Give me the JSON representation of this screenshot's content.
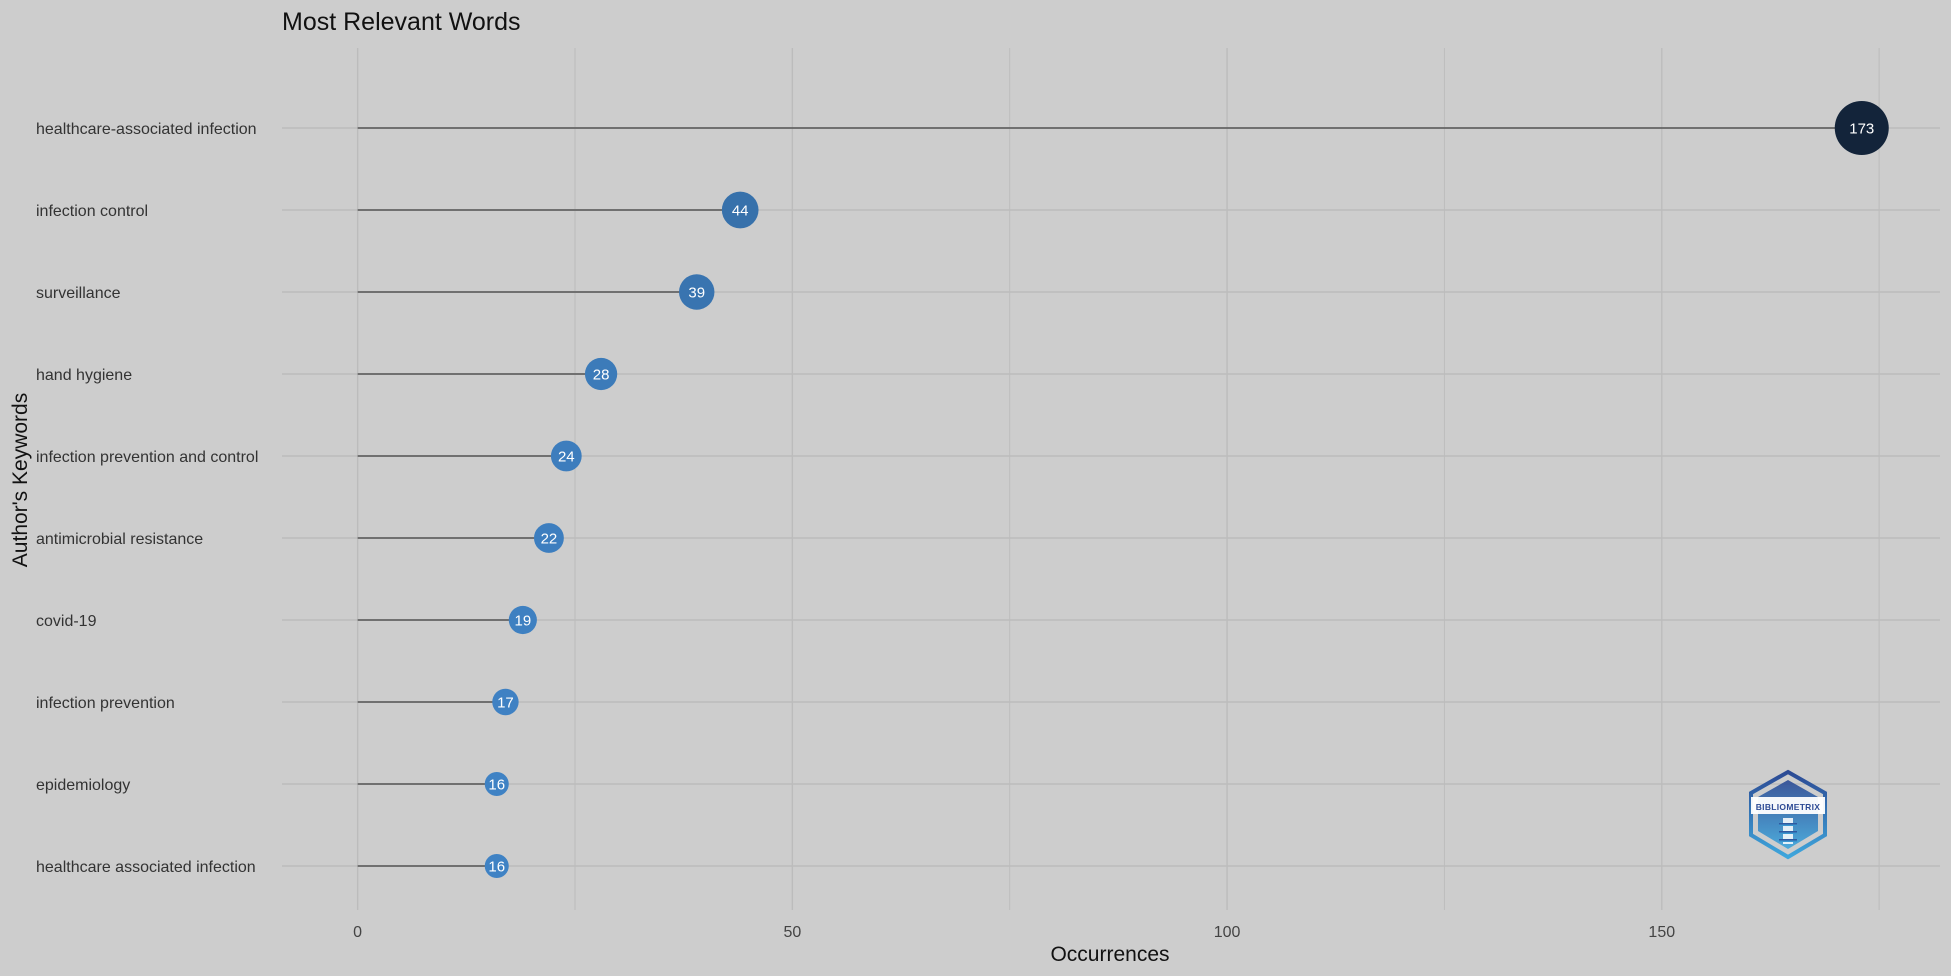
{
  "chart_data": {
    "type": "lollipop",
    "title": "Most Relevant Words",
    "xlabel": "Occurrences",
    "ylabel": "Author's Keywords",
    "xlim": [
      -8.7,
      182
    ],
    "xticks": [
      0,
      50,
      100,
      150
    ],
    "grid": true,
    "legend": "none",
    "categories": [
      "healthcare-associated infection",
      "infection control",
      "surveillance",
      "hand hygiene",
      "infection prevention and control",
      "antimicrobial resistance",
      "covid-19",
      "infection prevention",
      "epidemiology",
      "healthcare associated infection"
    ],
    "values": [
      173,
      44,
      39,
      28,
      24,
      22,
      19,
      17,
      16,
      16
    ],
    "value_labels": [
      "173",
      "44",
      "39",
      "28",
      "24",
      "22",
      "19",
      "17",
      "16",
      "16"
    ]
  },
  "colors": {
    "background": "#cdcdcd",
    "grid": "#bcbcbc",
    "stem": "#555555",
    "point_low": "#3f82c4",
    "point_high": "#13243a",
    "logo_dark": "#2c4a94",
    "logo_light": "#3ea6dc"
  },
  "logo": {
    "icon": "bibliometrix-logo-icon",
    "text": "BIBLIOMETRIX"
  }
}
